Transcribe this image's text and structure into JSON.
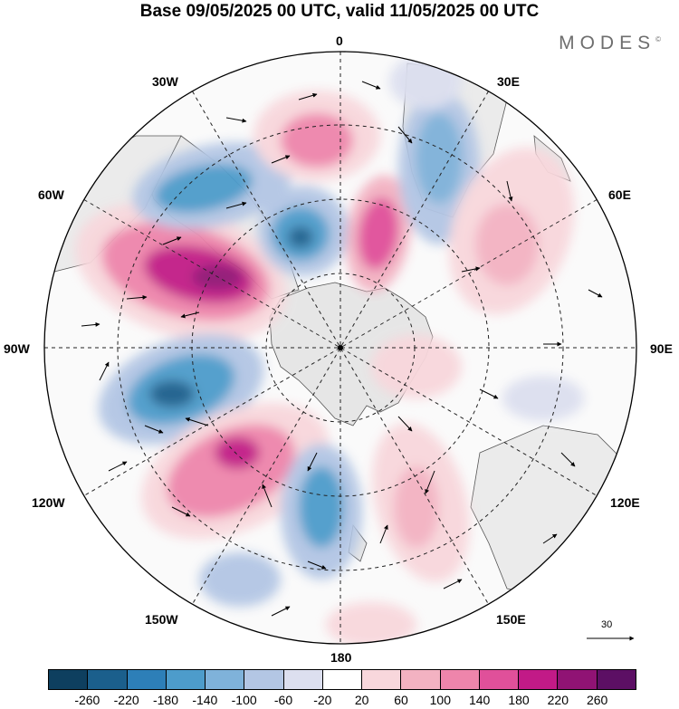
{
  "title": "Base 09/05/2025 00 UTC, valid 11/05/2025 00 UTC",
  "brand": "MODES",
  "brand_mark": "©",
  "labels": {
    "lon_0": "0",
    "lon_30e": "30E",
    "lon_60e": "60E",
    "lon_90e": "90E",
    "lon_120e": "120E",
    "lon_150e": "150E",
    "lon_180": "180",
    "lon_150w": "150W",
    "lon_120w": "120W",
    "lon_90w": "90W",
    "lon_60w": "60W",
    "lon_30w": "30W"
  },
  "reference_vector": "30",
  "colorbar": {
    "colors": [
      "#0e3f5f",
      "#1b5f8c",
      "#2d7fb8",
      "#4d9ccb",
      "#7fb2da",
      "#b3c6e4",
      "#dcdfef",
      "#ffffff",
      "#f8d7dc",
      "#f3b2c2",
      "#ee85ab",
      "#e0509a",
      "#c21a87",
      "#901374",
      "#5c0f64"
    ],
    "ticks": [
      "-260",
      "-220",
      "-180",
      "-140",
      "-100",
      "-60",
      "-20",
      "20",
      "60",
      "100",
      "140",
      "180",
      "220",
      "260"
    ]
  }
}
